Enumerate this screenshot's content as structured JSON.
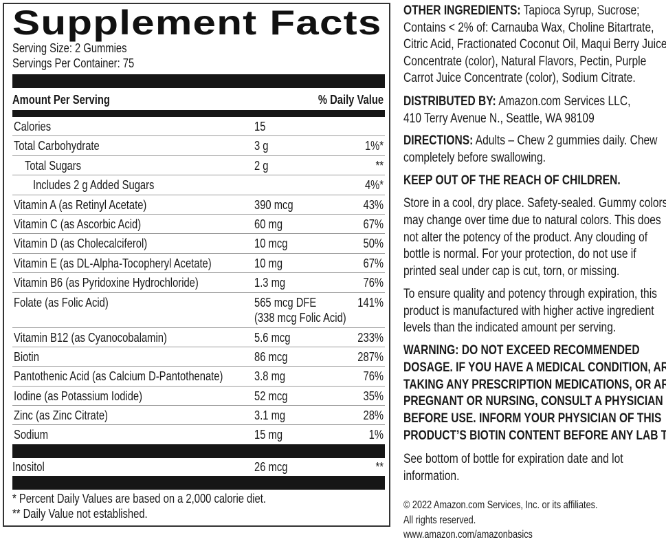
{
  "label": {
    "title": "Supplement Facts",
    "serving_size": "Serving Size: 2 Gummies",
    "servings_per_container": "Servings Per Container: 75",
    "header_amount": "Amount Per Serving",
    "header_dv": "% Daily Value",
    "rows": [
      {
        "name": "Calories",
        "amount": "15",
        "dv": "",
        "indent": 0
      },
      {
        "name": "Total Carbohydrate",
        "amount": "3 g",
        "dv": "1%*",
        "indent": 0
      },
      {
        "name": "Total Sugars",
        "amount": "2 g",
        "dv": "**",
        "indent": 1
      },
      {
        "name": "Includes 2 g Added Sugars",
        "amount": "",
        "dv": "4%*",
        "indent": 2
      },
      {
        "name": "Vitamin A (as Retinyl Acetate)",
        "amount": "390 mcg",
        "dv": "43%",
        "indent": 0
      },
      {
        "name": "Vitamin C (as Ascorbic Acid)",
        "amount": "60 mg",
        "dv": "67%",
        "indent": 0
      },
      {
        "name": "Vitamin D (as Cholecalciferol)",
        "amount": "10 mcg",
        "dv": "50%",
        "indent": 0
      },
      {
        "name": "Vitamin E (as DL-Alpha-Tocopheryl Acetate)",
        "amount": "10 mg",
        "dv": "67%",
        "indent": 0
      },
      {
        "name": "Vitamin B6 (as Pyridoxine Hydrochloride)",
        "amount": "1.3 mg",
        "dv": "76%",
        "indent": 0
      },
      {
        "name": "Folate (as Folic Acid)",
        "amount": "565 mcg DFE",
        "amount2": "(338 mcg Folic Acid)",
        "dv": "141%",
        "indent": 0
      },
      {
        "name": "Vitamin B12 (as Cyanocobalamin)",
        "amount": "5.6 mcg",
        "dv": "233%",
        "indent": 0
      },
      {
        "name": "Biotin",
        "amount": "86 mcg",
        "dv": "287%",
        "indent": 0
      },
      {
        "name": "Pantothenic Acid (as Calcium D-Pantothenate)",
        "amount": "3.8 mg",
        "dv": "76%",
        "indent": 0
      },
      {
        "name": "Iodine (as Potassium Iodide)",
        "amount": "52 mcg",
        "dv": "35%",
        "indent": 0
      },
      {
        "name": "Zinc (as Zinc Citrate)",
        "amount": "3.1 mg",
        "dv": "28%",
        "indent": 0
      },
      {
        "name": "Sodium",
        "amount": "15 mg",
        "dv": "1%",
        "indent": 0
      }
    ],
    "other_row": {
      "name": "Inositol",
      "amount": "26 mcg",
      "dv": "**"
    },
    "footnote1": "* Percent Daily Values are based on a 2,000 calorie diet.",
    "footnote2": "** Daily Value not established."
  },
  "info": {
    "other_ingredients_label": "OTHER INGREDIENTS:",
    "other_ingredients_lines": [
      " Tapioca Syrup, Sucrose;",
      "Contains < 2% of: Carnauba Wax, Choline Bitartrate,",
      "Citric Acid, Fractionated Coconut Oil, Maqui Berry Juice",
      "Concentrate (color), Natural Flavors, Pectin, Purple",
      "Carrot Juice Concentrate (color), Sodium Citrate."
    ],
    "distributed_label": "DISTRIBUTED BY:",
    "distributed_lines": [
      " Amazon.com Services LLC,",
      "410 Terry Avenue N., Seattle, WA 98109"
    ],
    "directions_label": "DIRECTIONS:",
    "directions_lines": [
      " Adults – Chew 2 gummies daily. Chew",
      "completely before swallowing."
    ],
    "keep_out": "KEEP OUT OF THE REACH OF CHILDREN.",
    "storage_lines": [
      "Store in a cool, dry place. Safety-sealed. Gummy colors",
      "may change over time due to natural colors. This does",
      "not alter the potency of the product. Any clouding of",
      "bottle is normal. For your protection, do not use if",
      "printed seal under cap is cut, torn, or missing."
    ],
    "quality_lines": [
      "To ensure quality and potency through expiration, this",
      "product is manufactured with higher active ingredient",
      "levels than the indicated amount per serving."
    ],
    "warning_lines": [
      "WARNING:  DO NOT EXCEED RECOMMENDED",
      "DOSAGE. IF YOU HAVE A MEDICAL CONDITION, ARE",
      "TAKING ANY PRESCRIPTION MEDICATIONS, OR ARE",
      "PREGNANT OR NURSING, CONSULT A PHYSICIAN",
      "BEFORE USE. INFORM YOUR PHYSICIAN OF THIS",
      "PRODUCT’S BIOTIN CONTENT BEFORE ANY LAB TEST."
    ],
    "expiration_lines": [
      "See bottom of bottle for expiration date and lot",
      "information."
    ],
    "copyright_lines": [
      "© 2022 Amazon.com Services, Inc. or its affiliates.",
      "All rights reserved.",
      "www.amazon.com/amazonbasics"
    ]
  }
}
